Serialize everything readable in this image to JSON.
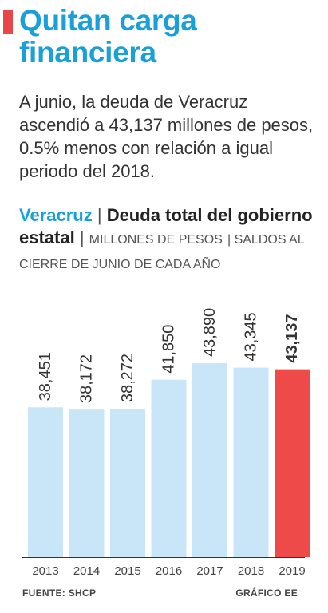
{
  "headline": "Quitan carga financiera",
  "lead": "A junio, la deuda de Veracruz ascendió a 43,137 millones de pesos, 0.5% menos con relación a igual periodo del 2018.",
  "subtitle": {
    "region": "Veracruz",
    "main": "Deuda total del gobierno estatal",
    "units": "MILLONES DE PESOS",
    "note": "SALDOS AL CIERRE DE JUNIO DE CADA AÑO"
  },
  "chart_data": {
    "type": "bar",
    "categories": [
      "2013",
      "2014",
      "2015",
      "2016",
      "2017",
      "2018",
      "2019"
    ],
    "values": [
      38451,
      38172,
      38272,
      41850,
      43890,
      43345,
      43137
    ],
    "labels": [
      "38,451",
      "38,172",
      "38,272",
      "41,850",
      "43,890",
      "43,345",
      "43,137"
    ],
    "highlight_index": 6,
    "colors": {
      "bar": "#c8e6f8",
      "highlight": "#ef4a4a",
      "label": "#333333"
    },
    "title": "Deuda total del gobierno estatal",
    "xlabel": "",
    "ylabel": "",
    "grid": false,
    "legend": "none"
  },
  "footer": {
    "source": "FUENTE: SHCP",
    "credit": "GRÁFICO EE"
  },
  "colors": {
    "accent": "#e8474a",
    "title": "#1aa0d8"
  }
}
